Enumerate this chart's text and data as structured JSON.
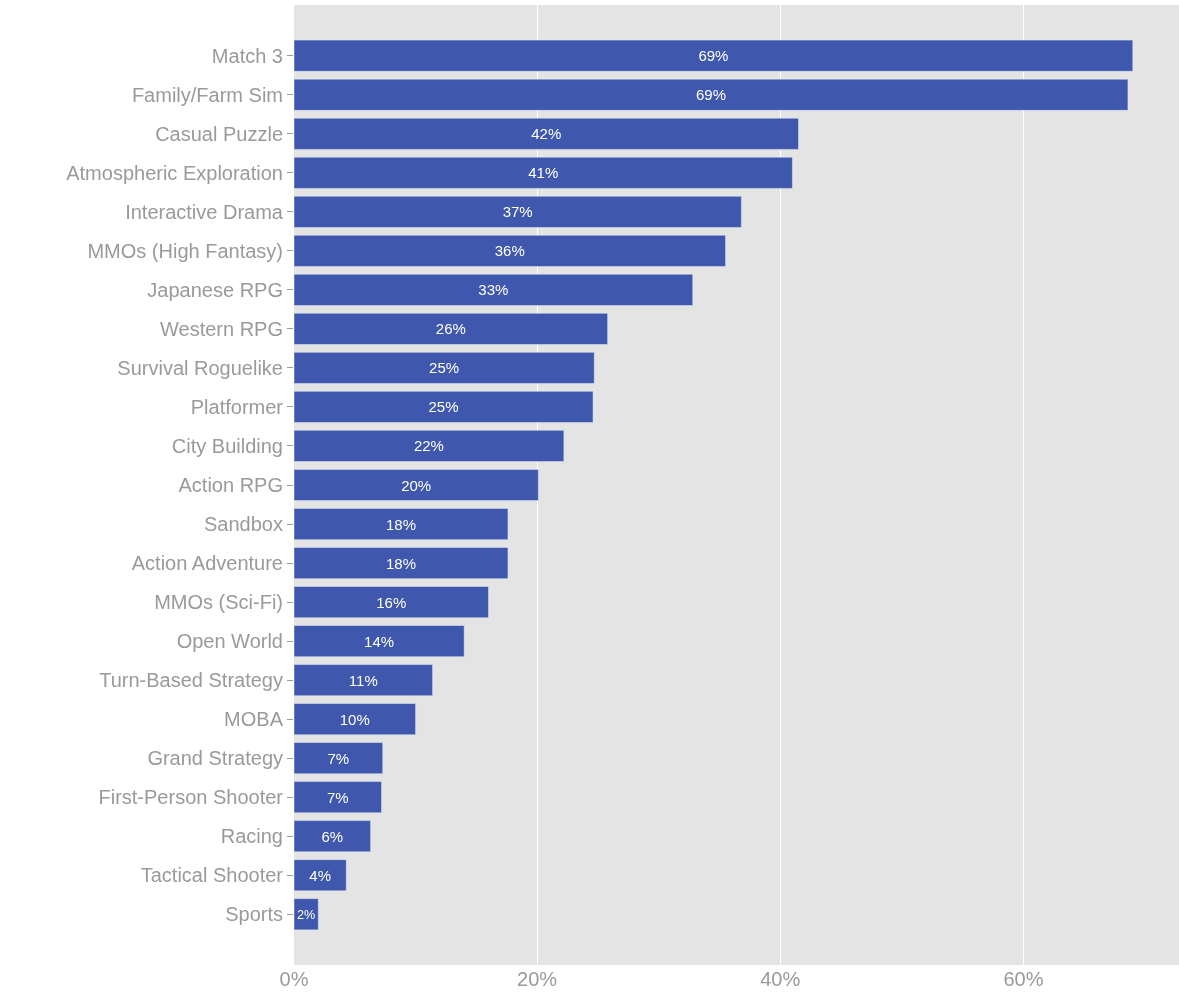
{
  "chart_data": {
    "type": "bar",
    "orientation": "horizontal",
    "categories": [
      "Match 3",
      "Family/Farm Sim",
      "Casual Puzzle",
      "Atmospheric Exploration",
      "Interactive Drama",
      "MMOs (High Fantasy)",
      "Japanese RPG",
      "Western RPG",
      "Survival Roguelike",
      "Platformer",
      "City Building",
      "Action RPG",
      "Sandbox",
      "Action Adventure",
      "MMOs (Sci-Fi)",
      "Open World",
      "Turn-Based Strategy",
      "MOBA",
      "Grand Strategy",
      "First-Person Shooter",
      "Racing",
      "Tactical Shooter",
      "Sports"
    ],
    "values": [
      69.0,
      68.6,
      41.5,
      41.0,
      36.8,
      35.5,
      32.8,
      25.8,
      24.7,
      24.6,
      22.2,
      20.1,
      17.6,
      17.6,
      16.0,
      14.0,
      11.4,
      10.0,
      7.3,
      7.2,
      6.3,
      4.3,
      2.0
    ],
    "value_labels": [
      "69%",
      "69%",
      "42%",
      "41%",
      "37%",
      "36%",
      "33%",
      "26%",
      "25%",
      "25%",
      "22%",
      "20%",
      "18%",
      "18%",
      "16%",
      "14%",
      "11%",
      "10%",
      "7%",
      "7%",
      "6%",
      "4%",
      "2%"
    ],
    "color": "#3f58ad",
    "xlim": [
      0,
      72.8
    ],
    "xticks": [
      {
        "value": 0,
        "label": "0%"
      },
      {
        "value": 20,
        "label": "20%"
      },
      {
        "value": 40,
        "label": "40%"
      },
      {
        "value": 60,
        "label": "60%"
      }
    ],
    "grid": "x"
  }
}
